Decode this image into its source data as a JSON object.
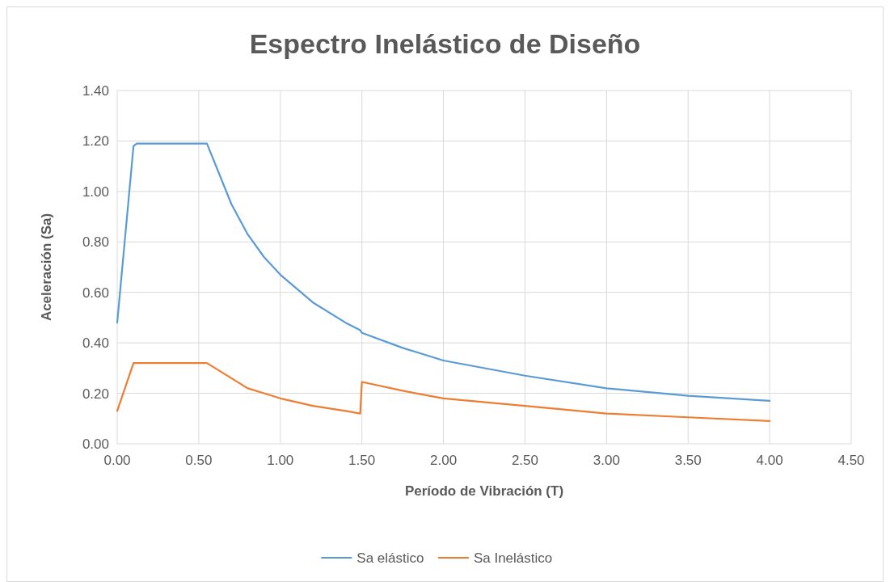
{
  "chart_data": {
    "type": "line",
    "title": "Espectro Inelástico de Diseño",
    "xlabel": "Período de Vibración (T)",
    "ylabel": "Aceleración (Sa)",
    "x": [
      0,
      0.1,
      0.12,
      0.55,
      0.6,
      0.7,
      0.8,
      0.9,
      1.0,
      1.2,
      1.4,
      1.49,
      1.5,
      1.75,
      2.0,
      2.5,
      3.0,
      3.5,
      4.0
    ],
    "series": [
      {
        "name": "Sa elástico",
        "color": "#5b9bd5",
        "values": [
          0.48,
          1.18,
          1.19,
          1.19,
          1.11,
          0.95,
          0.83,
          0.74,
          0.67,
          0.56,
          0.48,
          0.45,
          0.44,
          0.38,
          0.33,
          0.27,
          0.22,
          0.19,
          0.17
        ]
      },
      {
        "name": "Sa Inelástico",
        "color": "#ed7d31",
        "values": [
          0.13,
          0.32,
          0.32,
          0.32,
          0.3,
          0.26,
          0.22,
          0.2,
          0.18,
          0.15,
          0.13,
          0.12,
          0.245,
          0.21,
          0.18,
          0.15,
          0.12,
          0.105,
          0.09
        ]
      }
    ],
    "xlim": [
      0,
      4.5
    ],
    "xticks": [
      {
        "value": 0,
        "label": "0.00"
      },
      {
        "value": 0.5,
        "label": "0.50"
      },
      {
        "value": 1,
        "label": "1.00"
      },
      {
        "value": 1.5,
        "label": "1.50"
      },
      {
        "value": 2,
        "label": "2.00"
      },
      {
        "value": 2.5,
        "label": "2.50"
      },
      {
        "value": 3,
        "label": "3.00"
      },
      {
        "value": 3.5,
        "label": "3.50"
      },
      {
        "value": 4,
        "label": "4.00"
      },
      {
        "value": 4.5,
        "label": "4.50"
      }
    ],
    "ylim": [
      0,
      1.4
    ],
    "yticks": [
      {
        "value": 0,
        "label": "0.00"
      },
      {
        "value": 0.2,
        "label": "0.20"
      },
      {
        "value": 0.4,
        "label": "0.40"
      },
      {
        "value": 0.6,
        "label": "0.60"
      },
      {
        "value": 0.8,
        "label": "0.80"
      },
      {
        "value": 1,
        "label": "1.00"
      },
      {
        "value": 1.2,
        "label": "1.20"
      },
      {
        "value": 1.4,
        "label": "1.40"
      }
    ],
    "grid": true,
    "legend": "bottom",
    "marker": "none",
    "line_style": "solid"
  }
}
